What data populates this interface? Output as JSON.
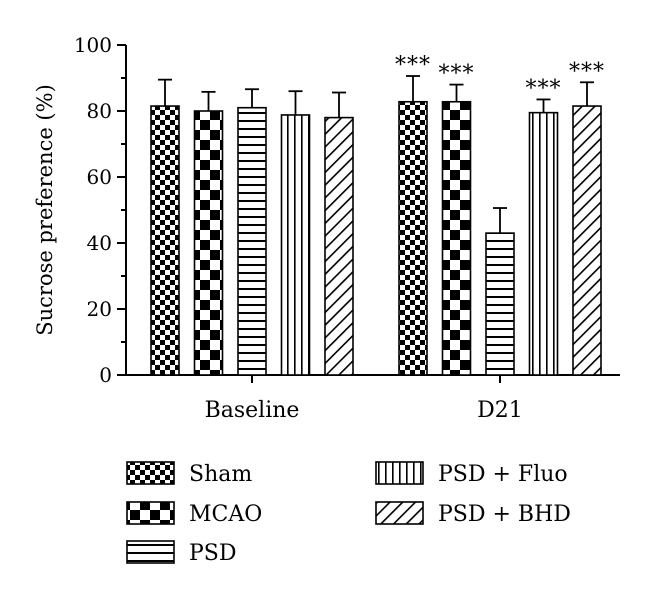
{
  "chart_data": {
    "type": "bar",
    "title": "",
    "xlabel": "",
    "ylabel": "Sucrose preference (%)",
    "ylim": [
      0,
      100
    ],
    "yticks": [
      0,
      20,
      40,
      60,
      80,
      100
    ],
    "categories": [
      "Baseline",
      "D21"
    ],
    "legend_position": "bottom",
    "grid": false,
    "series": [
      {
        "name": "Sham",
        "pattern": "checker-small",
        "values": [
          81.5,
          82.8
        ],
        "errors": [
          8.0,
          7.8
        ],
        "significance": [
          "",
          "***"
        ]
      },
      {
        "name": "MCAO",
        "pattern": "checker-large",
        "values": [
          80.0,
          82.8
        ],
        "errors": [
          5.8,
          5.2
        ],
        "significance": [
          "",
          "***"
        ]
      },
      {
        "name": "PSD",
        "pattern": "horizontal",
        "values": [
          81.0,
          43.0
        ],
        "errors": [
          5.6,
          7.6
        ],
        "significance": [
          "",
          ""
        ]
      },
      {
        "name": "PSD + Fluo",
        "pattern": "vertical",
        "values": [
          78.8,
          79.5
        ],
        "errors": [
          7.2,
          4.0
        ],
        "significance": [
          "",
          "***"
        ]
      },
      {
        "name": "PSD + BHD",
        "pattern": "diagonal",
        "values": [
          78.0,
          81.5
        ],
        "errors": [
          7.6,
          7.2
        ],
        "significance": [
          "",
          "***"
        ]
      }
    ]
  }
}
